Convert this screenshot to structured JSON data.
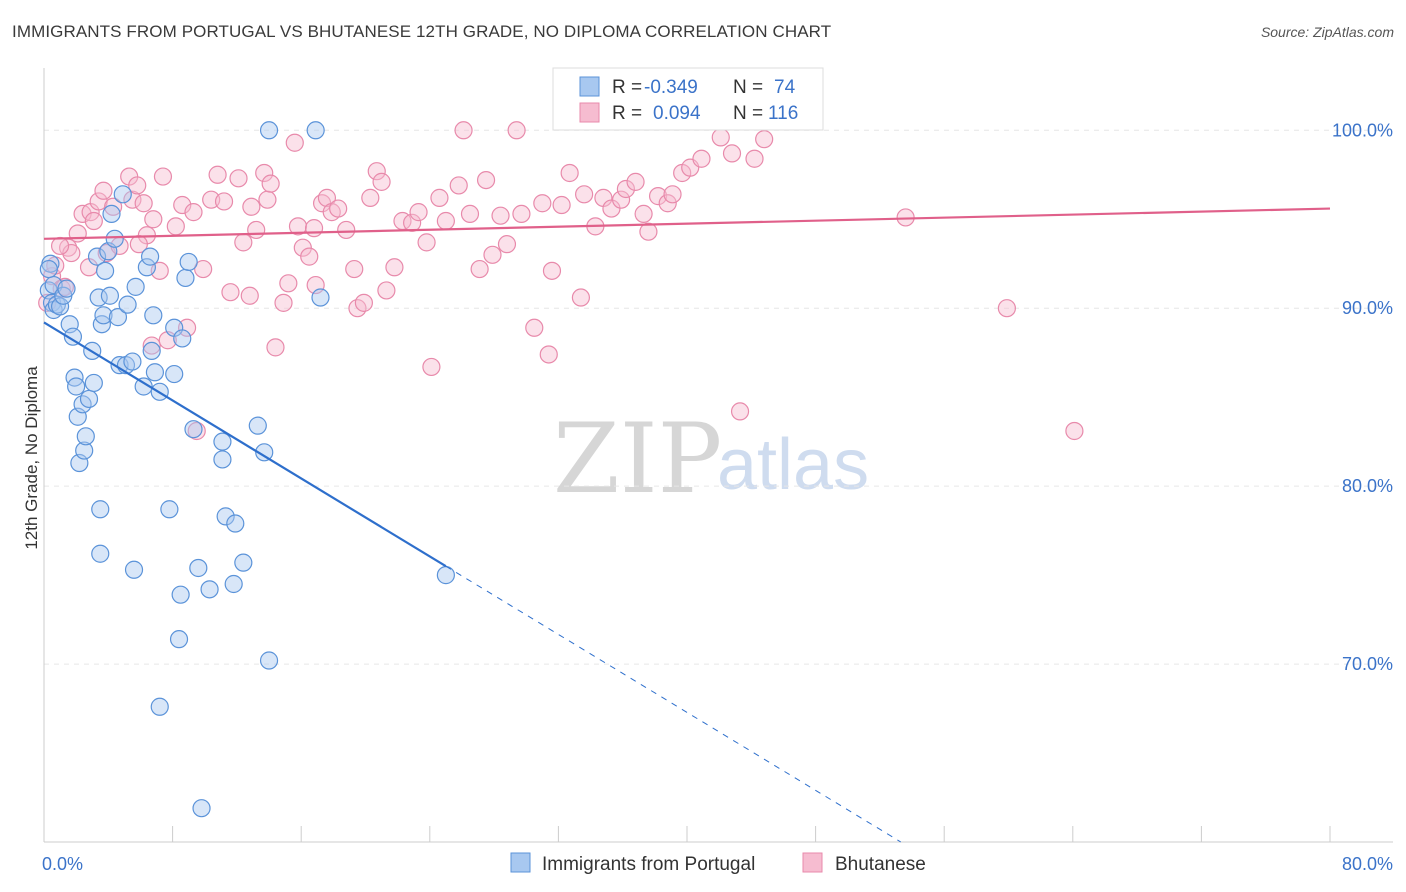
{
  "title": "IMMIGRANTS FROM PORTUGAL VS BHUTANESE 12TH GRADE, NO DIPLOMA CORRELATION CHART",
  "source": "Source: ZipAtlas.com",
  "watermark": {
    "zip": "ZIP",
    "atlas": "atlas"
  },
  "colors": {
    "blue_fill": "#a8c8f0",
    "blue_stroke": "#5b93d9",
    "blue_line": "#2e6fcc",
    "pink_fill": "#f6bcd0",
    "pink_stroke": "#e88aab",
    "pink_line": "#e0608a",
    "axis_text": "#3b73c9",
    "grid": "#e6e6e6"
  },
  "legend": {
    "rows": [
      {
        "r_label": "R =",
        "r_value": "-0.349",
        "n_label": "N =",
        "n_value": "74"
      },
      {
        "r_label": "R =",
        "r_value": "0.094",
        "n_label": "N =",
        "n_value": "116"
      }
    ]
  },
  "chart_data": {
    "type": "scatter",
    "xlabel": "",
    "ylabel": "12th Grade, No Diploma",
    "xlim": [
      0,
      80
    ],
    "ylim": [
      60,
      103.5
    ],
    "x_tick_labels": [
      "0.0%",
      "80.0%"
    ],
    "y_ticks": [
      70,
      80,
      90,
      100
    ],
    "y_tick_labels": [
      "70.0%",
      "80.0%",
      "90.0%",
      "100.0%"
    ],
    "grid": true,
    "legend_position": "bottom",
    "series": [
      {
        "name": "Immigrants from Portugal",
        "r": -0.349,
        "n": 74,
        "trend": {
          "x": [
            0,
            25
          ],
          "y": [
            89.2,
            75.5
          ],
          "dashed_to": [
            53.3,
            60
          ]
        },
        "points": [
          [
            0.3,
            91.0
          ],
          [
            0.4,
            92.5
          ],
          [
            0.5,
            90.3
          ],
          [
            0.6,
            89.9
          ],
          [
            0.6,
            91.3
          ],
          [
            0.8,
            90.2
          ],
          [
            1.0,
            90.1
          ],
          [
            1.2,
            90.7
          ],
          [
            1.4,
            91.1
          ],
          [
            1.6,
            89.1
          ],
          [
            1.8,
            88.4
          ],
          [
            1.9,
            86.1
          ],
          [
            2.0,
            85.6
          ],
          [
            2.1,
            83.9
          ],
          [
            2.2,
            81.3
          ],
          [
            2.4,
            84.6
          ],
          [
            2.5,
            82.0
          ],
          [
            2.6,
            82.8
          ],
          [
            2.8,
            84.9
          ],
          [
            3.0,
            87.6
          ],
          [
            3.1,
            85.8
          ],
          [
            3.3,
            92.9
          ],
          [
            3.4,
            90.6
          ],
          [
            3.5,
            78.7
          ],
          [
            3.5,
            76.2
          ],
          [
            3.6,
            89.1
          ],
          [
            3.7,
            89.6
          ],
          [
            3.8,
            92.1
          ],
          [
            4.0,
            93.2
          ],
          [
            4.1,
            90.7
          ],
          [
            4.2,
            95.3
          ],
          [
            4.4,
            93.9
          ],
          [
            4.6,
            89.5
          ],
          [
            4.7,
            86.8
          ],
          [
            4.9,
            96.4
          ],
          [
            5.1,
            86.8
          ],
          [
            5.2,
            90.2
          ],
          [
            5.5,
            87.0
          ],
          [
            5.6,
            75.3
          ],
          [
            5.7,
            91.2
          ],
          [
            6.2,
            85.6
          ],
          [
            6.4,
            92.3
          ],
          [
            6.6,
            92.9
          ],
          [
            6.7,
            87.6
          ],
          [
            6.8,
            89.6
          ],
          [
            6.9,
            86.4
          ],
          [
            7.2,
            85.3
          ],
          [
            7.2,
            67.6
          ],
          [
            7.8,
            78.7
          ],
          [
            8.1,
            86.3
          ],
          [
            8.1,
            88.9
          ],
          [
            8.4,
            71.4
          ],
          [
            8.5,
            73.9
          ],
          [
            8.6,
            88.3
          ],
          [
            8.8,
            91.7
          ],
          [
            9.0,
            92.6
          ],
          [
            9.3,
            83.2
          ],
          [
            9.6,
            75.4
          ],
          [
            9.8,
            61.9
          ],
          [
            10.3,
            74.2
          ],
          [
            11.1,
            82.5
          ],
          [
            11.1,
            81.5
          ],
          [
            11.3,
            78.3
          ],
          [
            11.8,
            74.5
          ],
          [
            11.9,
            77.9
          ],
          [
            12.4,
            75.7
          ],
          [
            13.3,
            83.4
          ],
          [
            13.7,
            81.9
          ],
          [
            14.0,
            70.2
          ],
          [
            14.0,
            100.0
          ],
          [
            16.9,
            100.0
          ],
          [
            17.2,
            90.6
          ],
          [
            25.0,
            75.0
          ],
          [
            0.3,
            92.2
          ]
        ]
      },
      {
        "name": "Bhutanese",
        "r": 0.094,
        "n": 116,
        "trend": {
          "x": [
            0,
            80
          ],
          "y": [
            93.9,
            95.6
          ]
        },
        "points": [
          [
            0.2,
            90.3
          ],
          [
            0.5,
            91.8
          ],
          [
            0.7,
            92.4
          ],
          [
            1.1,
            91.1
          ],
          [
            1.5,
            93.4
          ],
          [
            1.7,
            93.1
          ],
          [
            2.1,
            94.2
          ],
          [
            2.4,
            95.3
          ],
          [
            2.9,
            95.4
          ],
          [
            3.1,
            94.9
          ],
          [
            3.4,
            96.0
          ],
          [
            3.7,
            96.6
          ],
          [
            3.9,
            93.1
          ],
          [
            4.3,
            95.7
          ],
          [
            4.7,
            93.5
          ],
          [
            5.3,
            97.4
          ],
          [
            5.5,
            96.1
          ],
          [
            5.8,
            96.9
          ],
          [
            6.2,
            95.9
          ],
          [
            6.4,
            94.1
          ],
          [
            6.7,
            87.9
          ],
          [
            6.8,
            95.0
          ],
          [
            7.2,
            92.1
          ],
          [
            7.4,
            97.4
          ],
          [
            7.7,
            88.2
          ],
          [
            8.2,
            94.6
          ],
          [
            8.6,
            95.8
          ],
          [
            8.9,
            88.9
          ],
          [
            9.3,
            95.4
          ],
          [
            9.5,
            83.1
          ],
          [
            9.9,
            92.2
          ],
          [
            10.4,
            96.1
          ],
          [
            10.8,
            97.5
          ],
          [
            11.2,
            96.0
          ],
          [
            11.6,
            90.9
          ],
          [
            12.1,
            97.3
          ],
          [
            12.4,
            93.7
          ],
          [
            12.8,
            90.7
          ],
          [
            13.2,
            94.4
          ],
          [
            13.7,
            97.6
          ],
          [
            13.9,
            96.1
          ],
          [
            14.1,
            97.0
          ],
          [
            14.4,
            87.8
          ],
          [
            14.9,
            90.3
          ],
          [
            15.2,
            91.4
          ],
          [
            15.6,
            99.3
          ],
          [
            15.8,
            94.6
          ],
          [
            16.1,
            93.4
          ],
          [
            16.5,
            92.9
          ],
          [
            16.9,
            91.3
          ],
          [
            17.3,
            95.9
          ],
          [
            17.6,
            96.2
          ],
          [
            17.9,
            95.4
          ],
          [
            18.3,
            95.6
          ],
          [
            18.8,
            94.4
          ],
          [
            19.3,
            92.2
          ],
          [
            19.5,
            90.0
          ],
          [
            19.9,
            90.3
          ],
          [
            20.3,
            96.2
          ],
          [
            20.7,
            97.7
          ],
          [
            21.0,
            97.1
          ],
          [
            21.3,
            91.0
          ],
          [
            21.8,
            92.3
          ],
          [
            22.3,
            94.9
          ],
          [
            22.9,
            94.8
          ],
          [
            23.3,
            95.4
          ],
          [
            23.8,
            93.7
          ],
          [
            24.1,
            86.7
          ],
          [
            24.6,
            96.2
          ],
          [
            25.0,
            94.9
          ],
          [
            25.8,
            96.9
          ],
          [
            26.1,
            100.0
          ],
          [
            26.5,
            95.3
          ],
          [
            27.1,
            92.2
          ],
          [
            27.9,
            93.0
          ],
          [
            28.4,
            95.2
          ],
          [
            28.8,
            93.6
          ],
          [
            29.4,
            100.0
          ],
          [
            29.7,
            95.3
          ],
          [
            30.5,
            88.9
          ],
          [
            31.0,
            95.9
          ],
          [
            31.4,
            87.4
          ],
          [
            31.6,
            92.1
          ],
          [
            32.2,
            95.8
          ],
          [
            32.7,
            97.6
          ],
          [
            33.4,
            90.6
          ],
          [
            33.6,
            96.4
          ],
          [
            34.3,
            94.6
          ],
          [
            34.8,
            96.2
          ],
          [
            35.3,
            95.6
          ],
          [
            35.9,
            96.1
          ],
          [
            36.2,
            96.7
          ],
          [
            36.8,
            97.1
          ],
          [
            37.3,
            95.3
          ],
          [
            37.6,
            94.3
          ],
          [
            38.2,
            96.3
          ],
          [
            38.8,
            95.9
          ],
          [
            39.1,
            96.4
          ],
          [
            39.7,
            97.6
          ],
          [
            40.2,
            97.9
          ],
          [
            40.9,
            98.4
          ],
          [
            42.1,
            99.6
          ],
          [
            42.8,
            98.7
          ],
          [
            43.3,
            84.2
          ],
          [
            44.8,
            99.5
          ],
          [
            53.6,
            95.1
          ],
          [
            59.9,
            90.0
          ],
          [
            64.1,
            83.1
          ],
          [
            1.3,
            91.2
          ],
          [
            2.8,
            92.3
          ],
          [
            5.9,
            93.6
          ],
          [
            12.9,
            95.7
          ],
          [
            16.8,
            94.5
          ],
          [
            27.5,
            97.2
          ],
          [
            44.2,
            98.4
          ],
          [
            1.0,
            93.5
          ]
        ]
      }
    ]
  }
}
